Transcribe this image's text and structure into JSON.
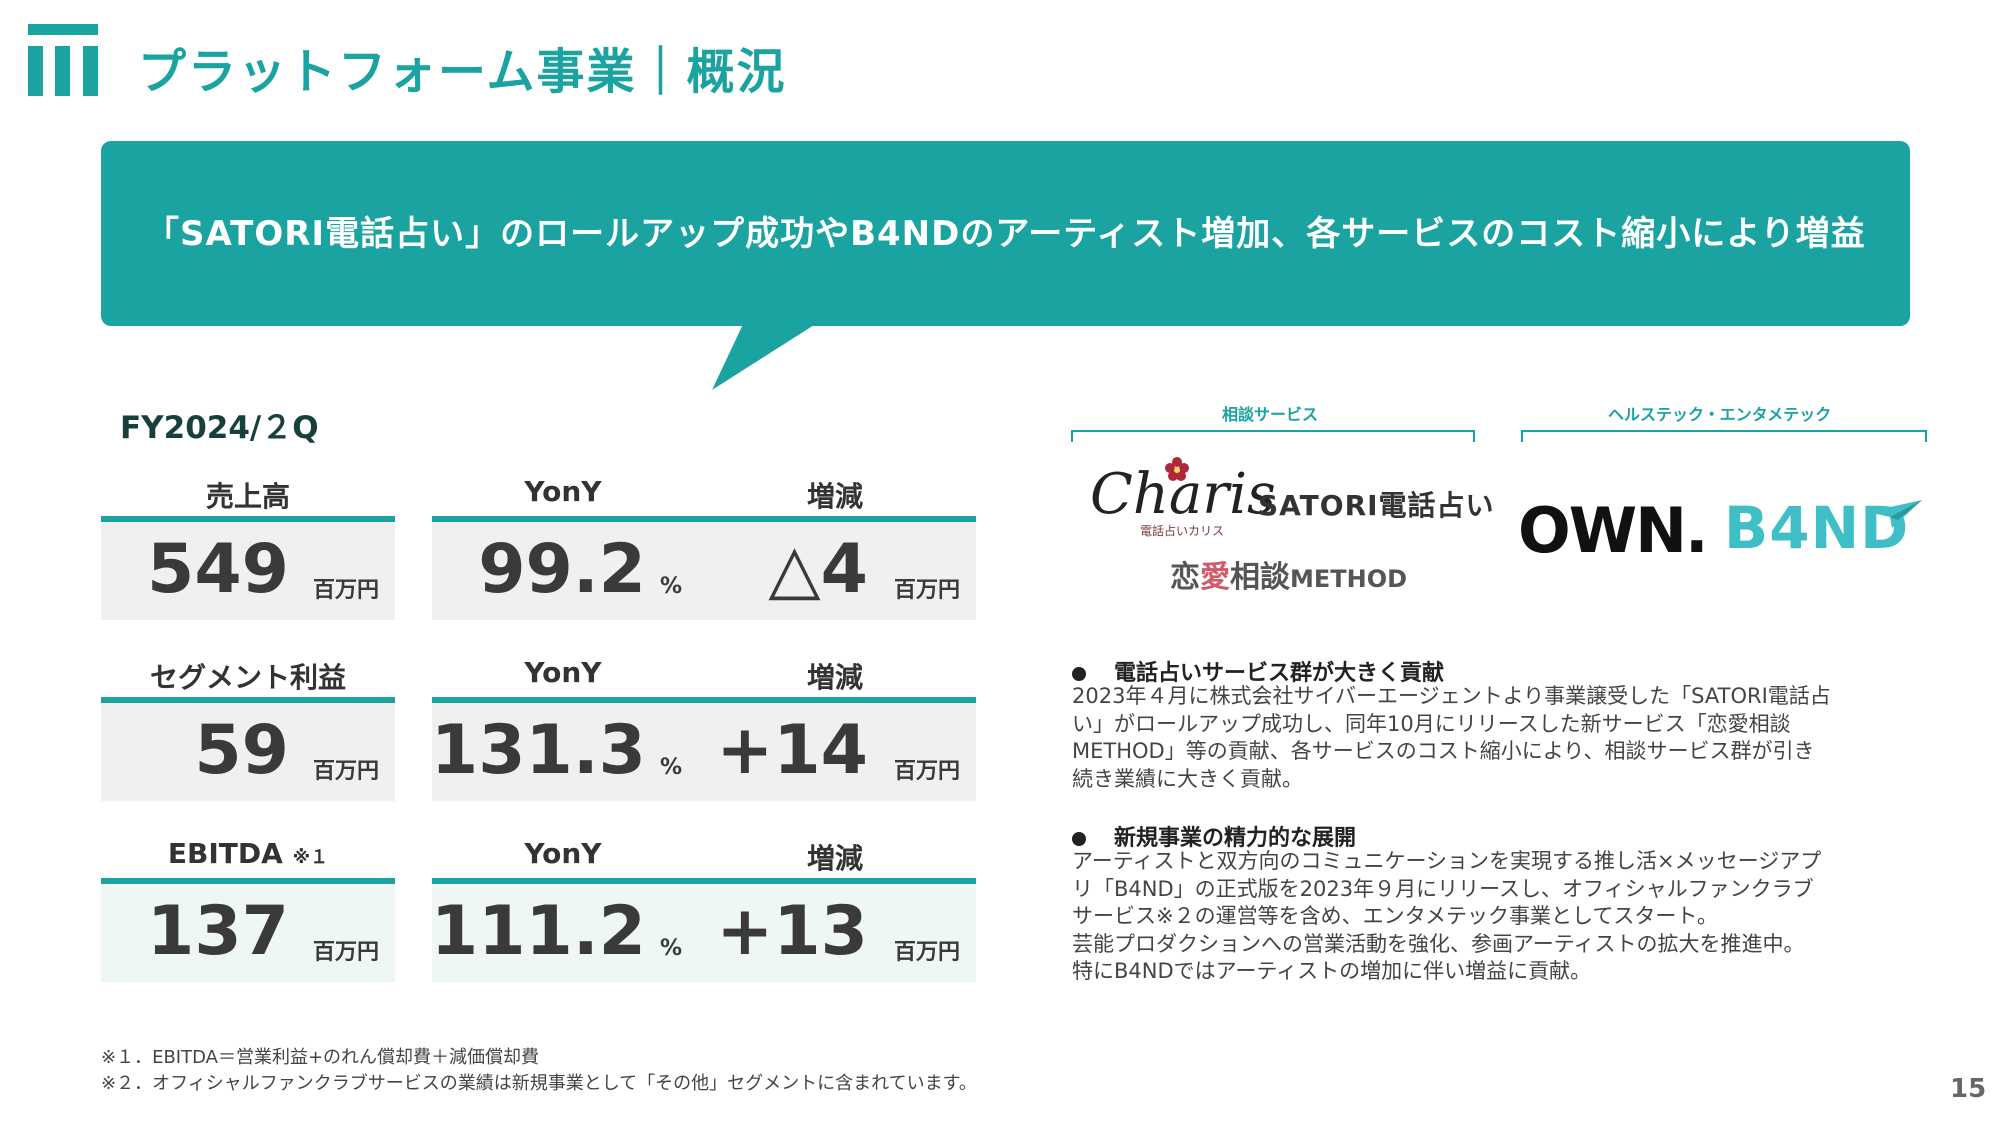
{
  "header": {
    "title": "プラットフォーム事業｜概況"
  },
  "banner": {
    "text": "「SATORI電話占い」のロールアップ成功やB4NDのアーティスト増加、各サービスのコスト縮小により増益"
  },
  "period": "FY2024/２Q",
  "kpis": [
    {
      "label": "売上高",
      "note": "",
      "value": "549",
      "unit": "百万円",
      "yony_label": "YonY",
      "yony_value": "99.2",
      "yony_unit": "%",
      "change_label": "増減",
      "change_value": "△4",
      "change_unit": "百万円"
    },
    {
      "label": "セグメント利益",
      "note": "",
      "value": "59",
      "unit": "百万円",
      "yony_label": "YonY",
      "yony_value": "131.3",
      "yony_unit": "%",
      "change_label": "増減",
      "change_value": "+14",
      "change_unit": "百万円"
    },
    {
      "label": "EBITDA",
      "note": "※１",
      "value": "137",
      "unit": "百万円",
      "yony_label": "YonY",
      "yony_value": "111.2",
      "yony_unit": "%",
      "change_label": "増減",
      "change_value": "+13",
      "change_unit": "百万円"
    }
  ],
  "services": {
    "consulting_label": "相談サービス",
    "healthtech_label": "ヘルステック・エンタメテック",
    "logos": {
      "charis": "Charis",
      "charis_sub": "電話占いカリス",
      "satori": "SATORI電話占い",
      "renai_prefix": "恋",
      "renai_ai": "愛",
      "renai_rest": "相談",
      "renai_method": "METHOD",
      "own": "OWN.",
      "b4nd": "B4ND"
    }
  },
  "bullets": [
    {
      "heading": "電話占いサービス群が大きく貢献",
      "lines": [
        "2023年４月に株式会社サイバーエージェントより事業譲受した「SATORI電話占",
        "い」がロールアップ成功し、同年10月にリリースした新サービス「恋愛相談",
        "METHOD」等の貢献、各サービスのコスト縮小により、相談サービス群が引き",
        "続き業績に大きく貢献。"
      ]
    },
    {
      "heading": "新規事業の精力的な展開",
      "lines": [
        "アーティストと双方向のコミュニケーションを実現する推し活×メッセージアプ",
        "リ「B4ND」の正式版を2023年９月にリリースし、オフィシャルファンクラブ",
        "サービス※２の運営等を含め、エンタメテック事業としてスタート。",
        "芸能プロダクションへの営業活動を強化、参画アーティストの拡大を推進中。",
        "特にB4NDではアーティストの増加に伴い増益に貢献。"
      ]
    }
  ],
  "footnotes": [
    "※１．EBITDA＝営業利益+のれん償却費＋減価償却費",
    "※２．オフィシャルファンクラブサービスの業績は新規事業として「その他」セグメントに含まれています。"
  ],
  "page_number": "15",
  "colors": {
    "accent": "#1aa3a0",
    "card_gray": "#f0f0f0",
    "card_tint": "#eef6f6",
    "b4nd": "#3fbfc5",
    "renai_accent": "#d25a6b"
  },
  "icons": {
    "logo": "company-logo-icon",
    "bullet": "bullet-dot-icon",
    "flower": "flower-icon",
    "plane": "paper-plane-icon"
  }
}
